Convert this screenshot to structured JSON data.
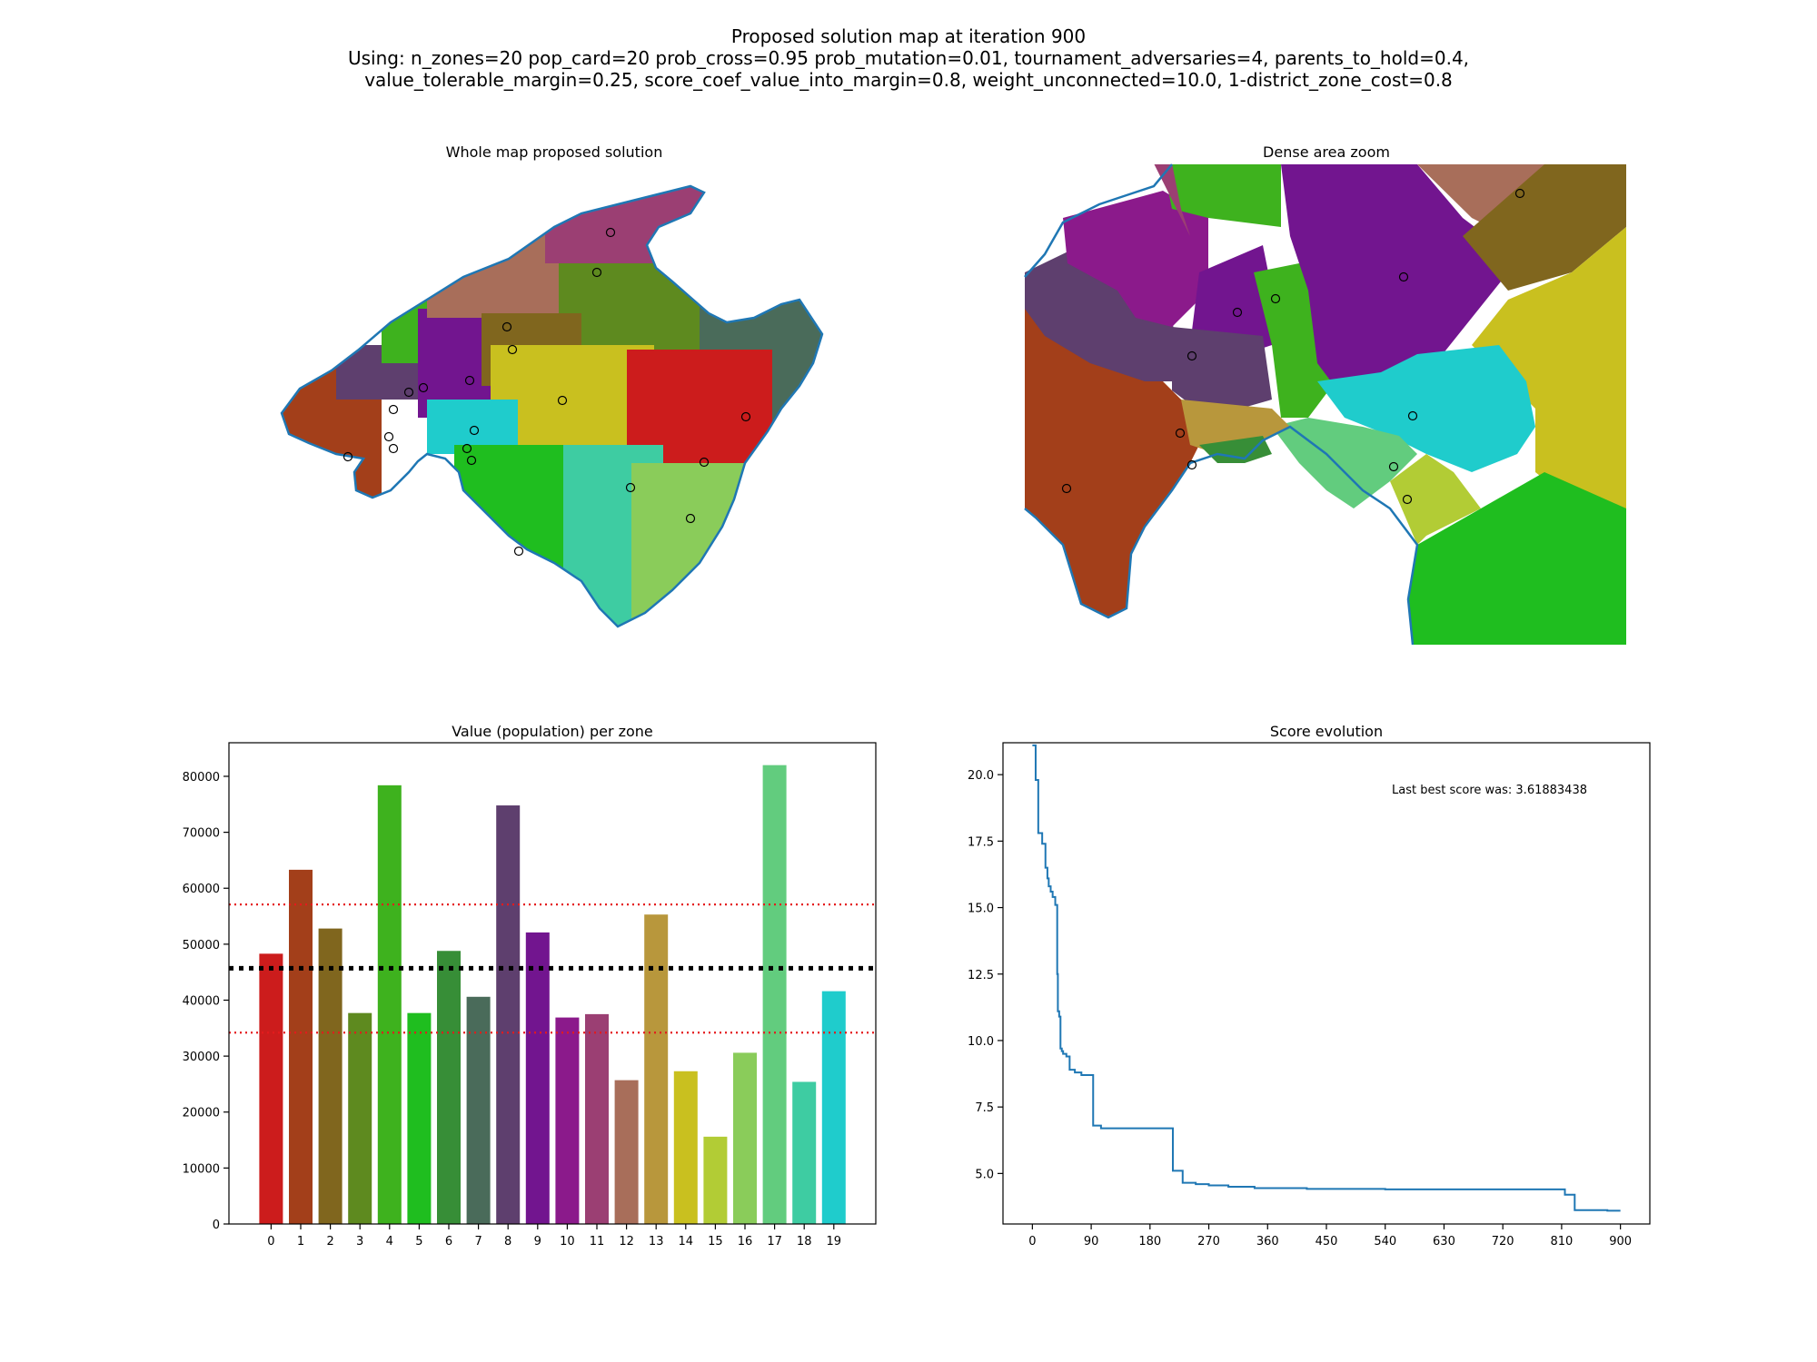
{
  "figure": {
    "title_lines": [
      "Proposed solution map at iteration 900",
      "Using: n_zones=20 pop_card=20 prob_cross=0.95 prob_mutation=0.01, tournament_adversaries=4, parents_to_hold=0.4,",
      "value_tolerable_margin=0.25, score_coef_value_into_margin=0.8, weight_unconnected=10.0, 1-district_zone_cost=0.8"
    ]
  },
  "maps": {
    "whole_title": "Whole map proposed solution",
    "zoom_title": "Dense area zoom",
    "coast_color": "#1f77b4"
  },
  "chart_data": [
    {
      "type": "bar",
      "title": "Value (population) per zone",
      "xlabel": "",
      "ylabel": "",
      "categories": [
        "0",
        "1",
        "2",
        "3",
        "4",
        "5",
        "6",
        "7",
        "8",
        "9",
        "10",
        "11",
        "12",
        "13",
        "14",
        "15",
        "16",
        "17",
        "18",
        "19"
      ],
      "values": [
        48300,
        63300,
        52800,
        37700,
        78400,
        37700,
        48800,
        40600,
        74800,
        52100,
        36900,
        37500,
        25700,
        55300,
        27300,
        15600,
        30600,
        82000,
        25400,
        41600
      ],
      "colors": [
        "#cc1c1c",
        "#a33f1a",
        "#80661e",
        "#5e8a1f",
        "#3eb21e",
        "#1fbe1f",
        "#378e37",
        "#4a6b5a",
        "#5e3f6e",
        "#72158f",
        "#8b1a8b",
        "#9b3f73",
        "#a86e5a",
        "#b8973c",
        "#c9c01f",
        "#b2cc35",
        "#8acc5a",
        "#62cc7e",
        "#3ecca2",
        "#1fcccc"
      ],
      "yticks": [
        0,
        10000,
        20000,
        30000,
        40000,
        50000,
        60000,
        70000,
        80000
      ],
      "ylim": [
        0,
        86000
      ],
      "reference_lines": [
        {
          "value": 45700,
          "style": "dotted",
          "color": "#000000"
        },
        {
          "value": 57100,
          "style": "dotted",
          "color": "#e41a1c"
        },
        {
          "value": 34200,
          "style": "dotted",
          "color": "#e41a1c"
        }
      ],
      "grid": false
    },
    {
      "type": "line",
      "title": "Score evolution",
      "annotation": "Last best score was: 3.61883438",
      "xlim": [
        -45,
        945
      ],
      "ylim": [
        3.1,
        21.2
      ],
      "xticks": [
        0,
        90,
        180,
        270,
        360,
        450,
        540,
        630,
        720,
        810,
        900
      ],
      "yticks": [
        5.0,
        7.5,
        10.0,
        12.5,
        15.0,
        17.5,
        20.0
      ],
      "series": [
        {
          "color": "#1f77b4",
          "x": [
            0,
            3,
            5,
            7,
            9,
            13,
            15,
            17,
            20,
            23,
            25,
            28,
            31,
            35,
            37,
            38,
            39,
            41,
            43,
            45,
            47,
            50,
            52,
            55,
            57,
            60,
            65,
            70,
            75,
            80,
            85,
            88,
            90,
            93,
            95,
            100,
            105,
            110,
            115,
            120,
            150,
            180,
            200,
            210,
            213,
            215,
            220,
            225,
            230,
            250,
            270,
            300,
            320,
            340,
            360,
            390,
            420,
            450,
            490,
            540,
            600,
            720,
            810,
            815,
            820,
            825,
            830,
            835,
            840,
            860,
            880,
            900
          ],
          "y": [
            21.1,
            21.1,
            19.8,
            19.8,
            17.8,
            17.8,
            17.4,
            17.4,
            16.5,
            16.1,
            15.8,
            15.6,
            15.4,
            15.1,
            15.1,
            12.5,
            11.1,
            10.9,
            9.7,
            9.6,
            9.5,
            9.5,
            9.4,
            9.4,
            8.9,
            8.9,
            8.8,
            8.8,
            8.7,
            8.7,
            8.7,
            8.7,
            8.7,
            6.8,
            6.8,
            6.8,
            6.7,
            6.7,
            6.7,
            6.7,
            6.7,
            6.7,
            6.7,
            6.7,
            6.7,
            5.1,
            5.1,
            5.1,
            4.65,
            4.6,
            4.55,
            4.5,
            4.5,
            4.45,
            4.45,
            4.45,
            4.42,
            4.42,
            4.42,
            4.4,
            4.4,
            4.4,
            4.4,
            4.2,
            4.2,
            4.2,
            3.62,
            3.62,
            3.62,
            3.62,
            3.6,
            3.6
          ]
        }
      ]
    }
  ]
}
